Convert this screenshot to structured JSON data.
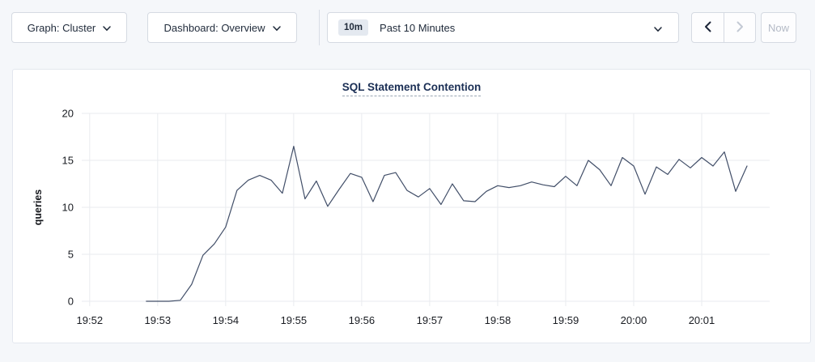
{
  "toolbar": {
    "graph_dropdown": {
      "label": "Graph: Cluster"
    },
    "dashboard_dropdown": {
      "label": "Dashboard: Overview"
    },
    "time_selector": {
      "badge": "10m",
      "label": "Past 10 Minutes"
    },
    "prev_button": {
      "icon": "chevron-left",
      "disabled": false
    },
    "next_button": {
      "icon": "chevron-right",
      "disabled": true
    },
    "now_button": {
      "label": "Now",
      "disabled": true
    }
  },
  "chart_data": {
    "type": "line",
    "title": "SQL Statement Contention",
    "xlabel": "",
    "ylabel": "queries",
    "ylim": [
      0,
      20
    ],
    "y_ticks": [
      0,
      5,
      10,
      15,
      20
    ],
    "x_ticks": [
      "19:52",
      "19:53",
      "19:54",
      "19:55",
      "19:56",
      "19:57",
      "19:58",
      "19:59",
      "20:00",
      "20:01"
    ],
    "x_range": [
      "19:51:53",
      "20:02:00"
    ],
    "grid": true,
    "legend": "none",
    "line_color": "#414e68",
    "grid_color": "#e9ebef",
    "series": [
      {
        "name": "queries",
        "points": [
          [
            "19:52:50",
            0
          ],
          [
            "19:53:00",
            0
          ],
          [
            "19:53:10",
            0
          ],
          [
            "19:53:20",
            0.1
          ],
          [
            "19:53:30",
            1.8
          ],
          [
            "19:53:40",
            4.9
          ],
          [
            "19:53:50",
            6.1
          ],
          [
            "19:54:00",
            7.9
          ],
          [
            "19:54:10",
            11.8
          ],
          [
            "19:54:20",
            12.9
          ],
          [
            "19:54:30",
            13.4
          ],
          [
            "19:54:40",
            12.9
          ],
          [
            "19:54:50",
            11.5
          ],
          [
            "19:55:00",
            16.5
          ],
          [
            "19:55:10",
            10.9
          ],
          [
            "19:55:20",
            12.8
          ],
          [
            "19:55:30",
            10.1
          ],
          [
            "19:55:40",
            11.9
          ],
          [
            "19:55:50",
            13.6
          ],
          [
            "19:56:00",
            13.2
          ],
          [
            "19:56:10",
            10.6
          ],
          [
            "19:56:20",
            13.4
          ],
          [
            "19:56:30",
            13.7
          ],
          [
            "19:56:40",
            11.8
          ],
          [
            "19:56:50",
            11.1
          ],
          [
            "19:57:00",
            12.0
          ],
          [
            "19:57:10",
            10.3
          ],
          [
            "19:57:20",
            12.5
          ],
          [
            "19:57:30",
            10.7
          ],
          [
            "19:57:40",
            10.6
          ],
          [
            "19:57:50",
            11.7
          ],
          [
            "19:58:00",
            12.3
          ],
          [
            "19:58:10",
            12.1
          ],
          [
            "19:58:20",
            12.3
          ],
          [
            "19:58:30",
            12.7
          ],
          [
            "19:58:40",
            12.4
          ],
          [
            "19:58:50",
            12.2
          ],
          [
            "19:59:00",
            13.3
          ],
          [
            "19:59:10",
            12.3
          ],
          [
            "19:59:20",
            15.0
          ],
          [
            "19:59:30",
            14.0
          ],
          [
            "19:59:40",
            12.3
          ],
          [
            "19:59:50",
            15.3
          ],
          [
            "20:00:00",
            14.4
          ],
          [
            "20:00:10",
            11.4
          ],
          [
            "20:00:20",
            14.3
          ],
          [
            "20:00:30",
            13.5
          ],
          [
            "20:00:40",
            15.1
          ],
          [
            "20:00:50",
            14.2
          ],
          [
            "20:01:00",
            15.3
          ],
          [
            "20:01:10",
            14.4
          ],
          [
            "20:01:20",
            15.9
          ],
          [
            "20:01:30",
            11.7
          ],
          [
            "20:01:40",
            14.4
          ]
        ]
      }
    ]
  }
}
